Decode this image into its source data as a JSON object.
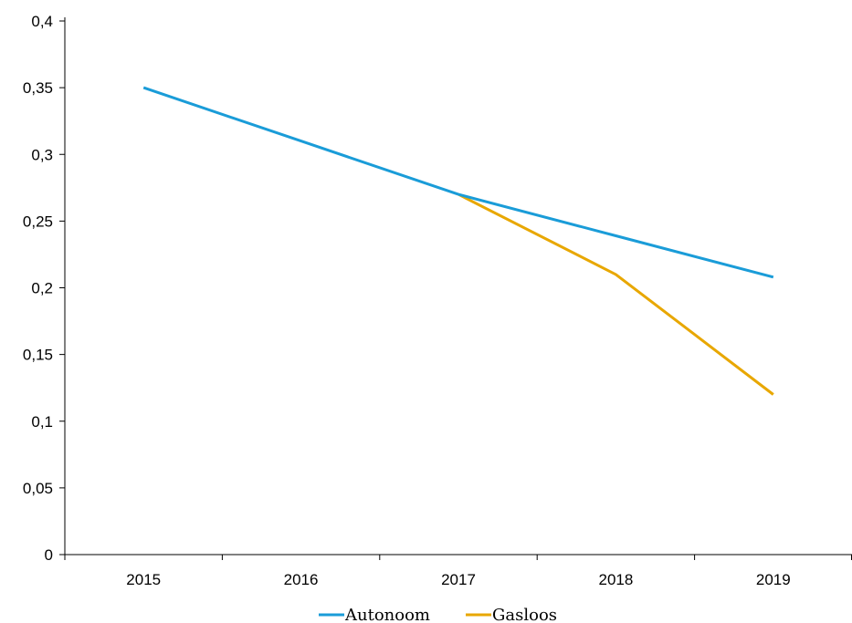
{
  "chart_data": {
    "type": "line",
    "title": "",
    "xlabel": "",
    "ylabel": "",
    "categories": [
      "2015",
      "2016",
      "2017",
      "2018",
      "2019"
    ],
    "ylim": [
      0,
      0.4
    ],
    "yticks": [
      "0",
      "0,05",
      "0,1",
      "0,15",
      "0,2",
      "0,25",
      "0,3",
      "0,35",
      "0,4"
    ],
    "grid": false,
    "legend_position": "bottom",
    "series": [
      {
        "name": "Autonoom",
        "color": "#1a9cd8",
        "values": [
          0.35,
          0.31,
          0.27,
          0.239,
          0.208
        ]
      },
      {
        "name": "Gasloos",
        "color": "#e8a700",
        "values": [
          null,
          null,
          0.27,
          0.21,
          0.12
        ]
      }
    ]
  }
}
